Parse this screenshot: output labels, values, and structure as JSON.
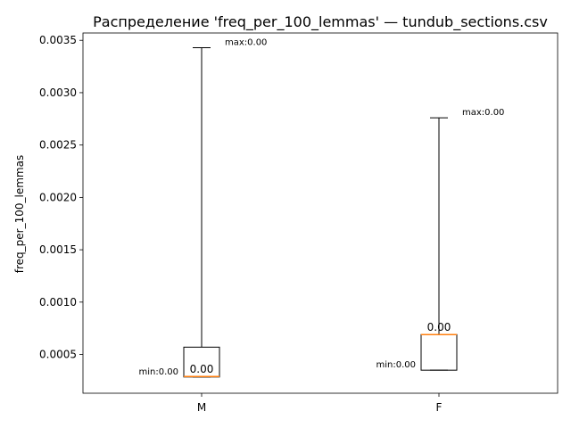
{
  "chart_data": {
    "type": "box",
    "title": "Распределение 'freq_per_100_lemmas' — tundub_sections.csv",
    "xlabel": "",
    "ylabel": "freq_per_100_lemmas",
    "ylim": [
      0.00013,
      0.00357
    ],
    "yticks": [
      {
        "value": 0.0005,
        "label": "0.0005"
      },
      {
        "value": 0.001,
        "label": "0.0010"
      },
      {
        "value": 0.0015,
        "label": "0.0015"
      },
      {
        "value": 0.002,
        "label": "0.0020"
      },
      {
        "value": 0.0025,
        "label": "0.0025"
      },
      {
        "value": 0.003,
        "label": "0.0030"
      },
      {
        "value": 0.0035,
        "label": "0.0035"
      }
    ],
    "grid": false,
    "categories": [
      "M",
      "F"
    ],
    "boxes": [
      {
        "category": "M",
        "min": 0.000285,
        "q1": 0.000285,
        "median": 0.00029,
        "q3": 0.00057,
        "max": 0.00343,
        "median_label": "0.00",
        "min_label": "min:0.00",
        "max_label": "max:0.00"
      },
      {
        "category": "F",
        "min": 0.00035,
        "q1": 0.00035,
        "median": 0.00069,
        "q3": 0.00069,
        "max": 0.00276,
        "median_label": "0.00",
        "min_label": "min:0.00",
        "max_label": "max:0.00"
      }
    ],
    "colors": {
      "box": "#000000",
      "median": "#ff7f0e",
      "background": "#ffffff"
    }
  }
}
